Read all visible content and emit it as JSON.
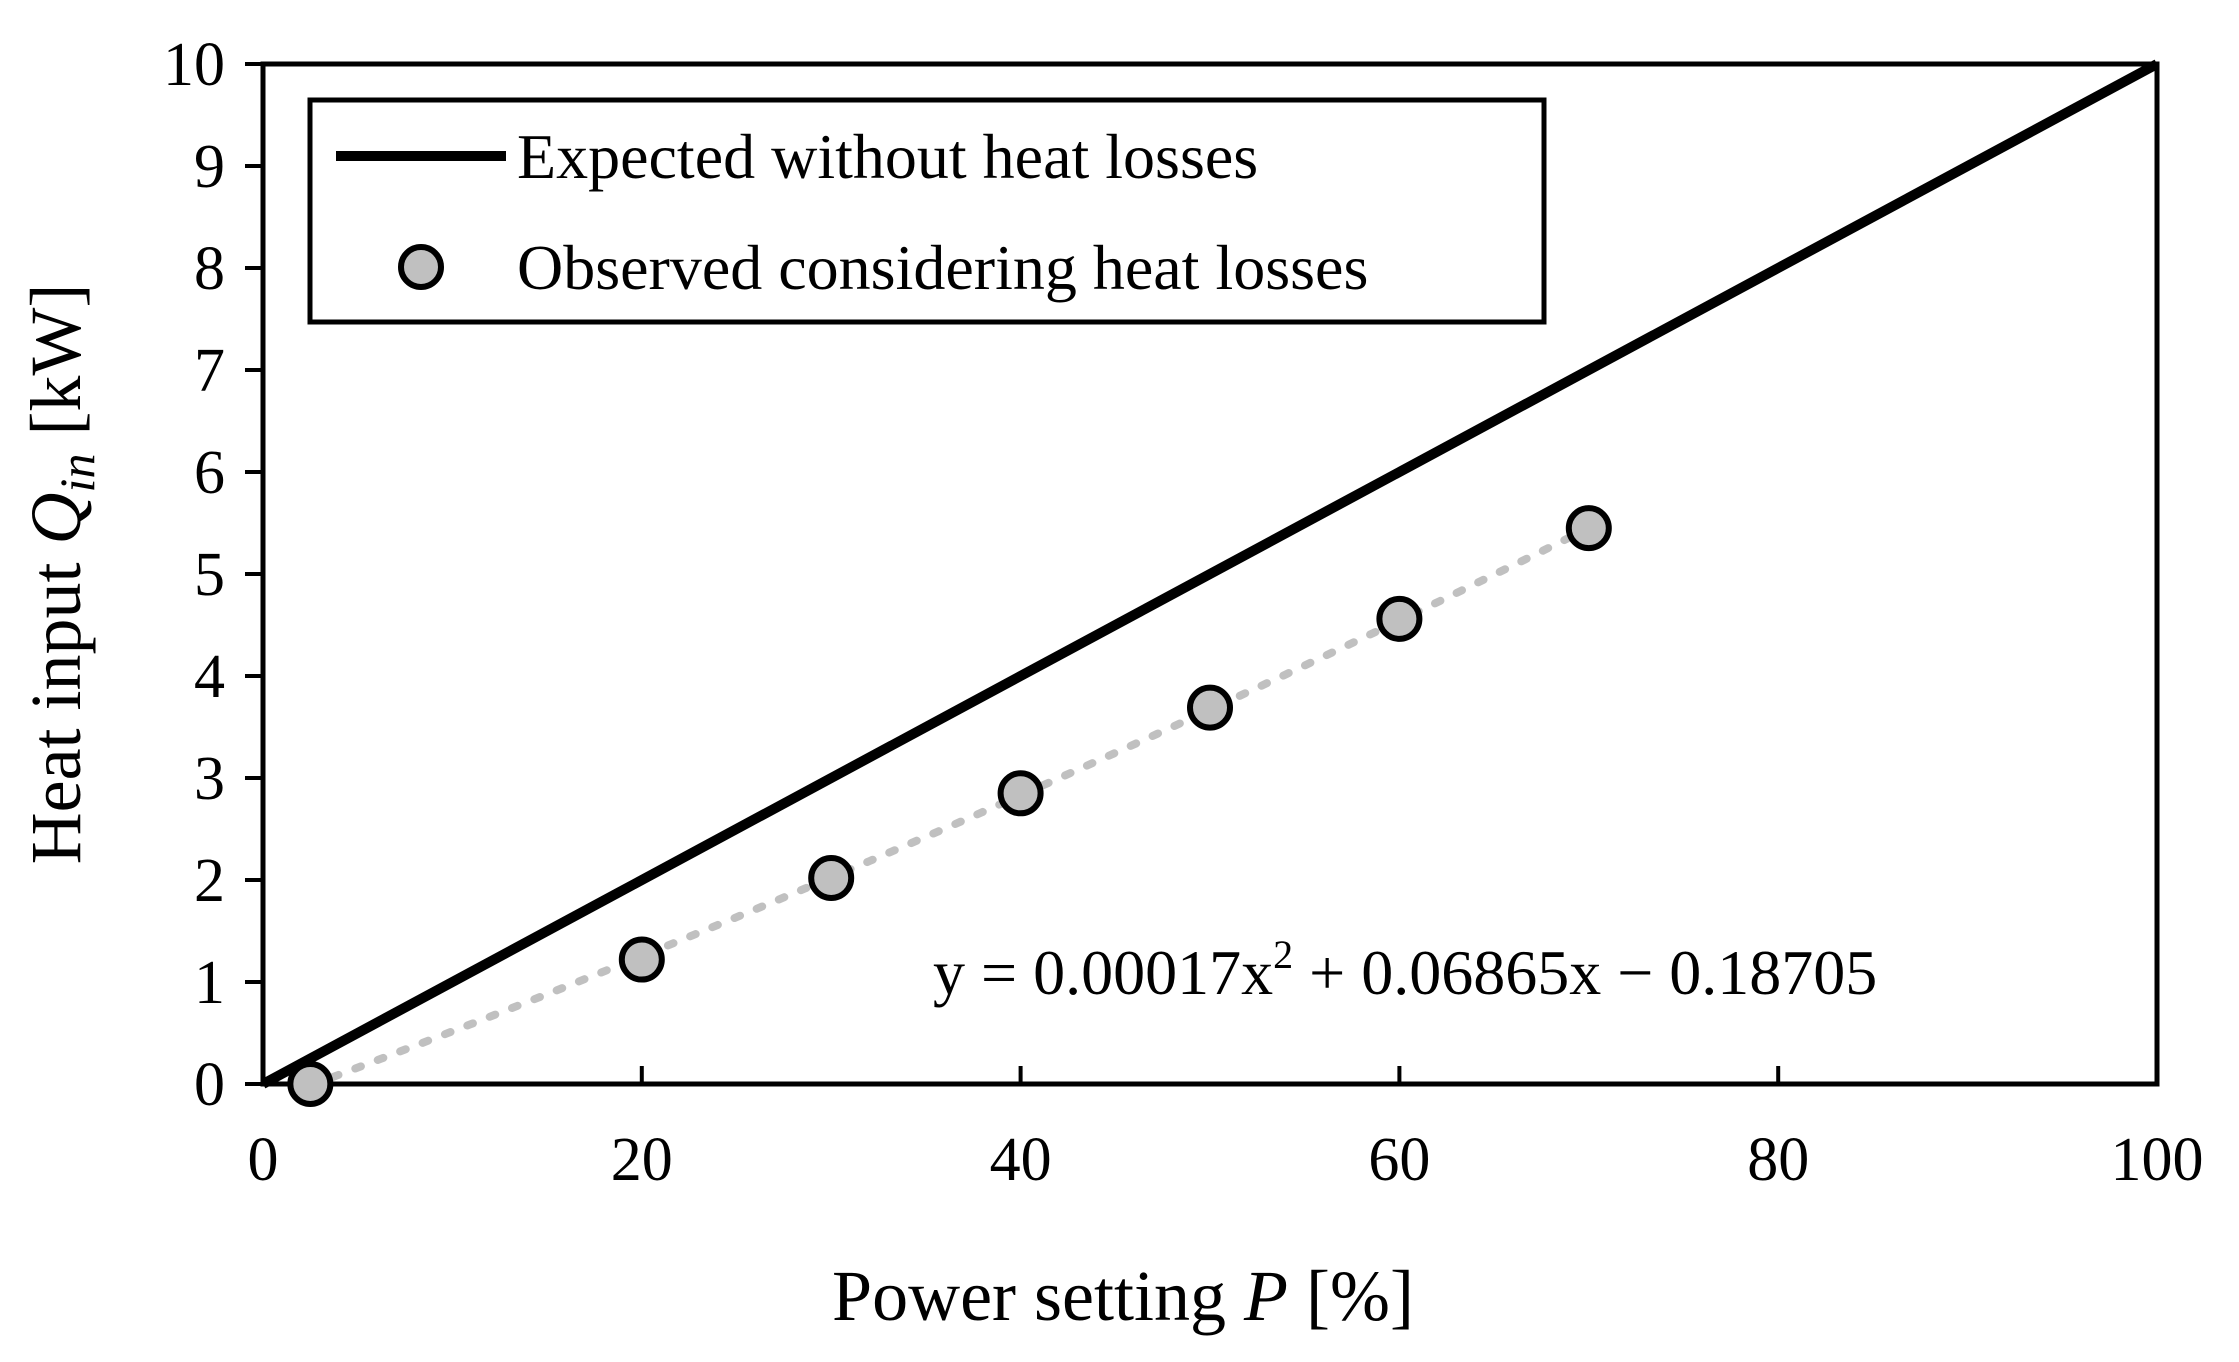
{
  "chart_data": {
    "type": "line",
    "title": "",
    "xlabel": {
      "prefix": "Power setting ",
      "variable": "P",
      "suffix": " [%]"
    },
    "ylabel": {
      "prefix": "Heat input ",
      "variable": "Q",
      "subscript": "in",
      "suffix": " [kW]"
    },
    "xlim": [
      0,
      100
    ],
    "ylim": [
      0,
      10
    ],
    "x_ticks": [
      0,
      20,
      40,
      60,
      80,
      100
    ],
    "x_tick_labels": [
      "0",
      "20",
      "40",
      "60",
      "80",
      "100"
    ],
    "y_ticks": [
      0,
      1,
      2,
      3,
      4,
      5,
      6,
      7,
      8,
      9,
      10
    ],
    "y_tick_labels": [
      "0",
      "1",
      "2",
      "3",
      "4",
      "5",
      "6",
      "7",
      "8",
      "9",
      "10"
    ],
    "grid": false,
    "legend_position": "top-left",
    "series": [
      {
        "name": "Expected without heat losses",
        "kind": "line",
        "color": "#000000",
        "x": [
          0,
          100
        ],
        "y": [
          0,
          10
        ]
      },
      {
        "name": "Observed considering heat losses",
        "kind": "scatter",
        "marker_fill": "#c0c0c0",
        "marker_stroke": "#000000",
        "x": [
          2.5,
          20,
          30,
          40,
          50,
          60,
          70
        ],
        "y": [
          0.0,
          1.22,
          2.02,
          2.85,
          3.69,
          4.56,
          5.45
        ]
      }
    ],
    "trendline": {
      "kind": "polynomial",
      "color": "#c0c0c0",
      "coefficients": {
        "a": 0.00017,
        "b": 0.06865,
        "c": -0.18705
      },
      "x_range": [
        2.5,
        70
      ],
      "equation": {
        "part1": "y = 0.00017x",
        "superscript": "2",
        "part2": " + 0.06865x − 0.18705"
      }
    }
  }
}
